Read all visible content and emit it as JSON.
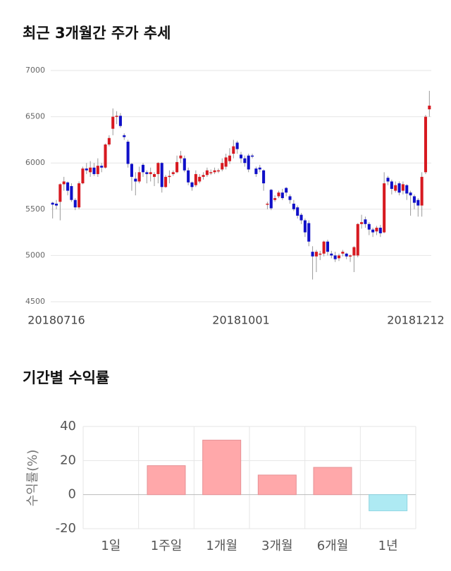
{
  "chart_data": [
    {
      "type": "candlestick",
      "title": "최근 3개월간 주가 추세",
      "categories": [
        "20180716",
        null,
        null,
        null,
        null,
        null,
        null,
        null,
        null,
        null,
        null,
        null,
        null,
        null,
        null,
        null,
        null,
        null,
        null,
        null,
        null,
        null,
        null,
        null,
        null,
        null,
        null,
        null,
        null,
        null,
        null,
        null,
        null,
        null,
        null,
        null,
        null,
        null,
        null,
        null,
        null,
        null,
        null,
        null,
        null,
        null,
        null,
        null,
        null,
        null,
        "20181001",
        null,
        null,
        null,
        null,
        null,
        null,
        null,
        null,
        null,
        null,
        null,
        null,
        null,
        null,
        null,
        null,
        null,
        null,
        null,
        null,
        null,
        null,
        null,
        null,
        null,
        null,
        null,
        null,
        null,
        null,
        null,
        null,
        null,
        null,
        null,
        null,
        null,
        null,
        null,
        null,
        null,
        null,
        null,
        null,
        null,
        null,
        null,
        null,
        null,
        "20181212"
      ],
      "open": [
        5570,
        5560,
        5580,
        5770,
        5790,
        5750,
        5600,
        5520,
        5780,
        5940,
        5900,
        5950,
        5880,
        5970,
        5950,
        6200,
        6370,
        6500,
        6510,
        6300,
        6230,
        5990,
        5830,
        5800,
        5980,
        5900,
        5880,
        5850,
        5880,
        6000,
        5740,
        5850,
        5880,
        5900,
        6050,
        6050,
        5920,
        5790,
        5760,
        5800,
        5850,
        5870,
        5900,
        5900,
        5920,
        5930,
        5960,
        6020,
        6100,
        6220,
        6090,
        6050,
        6080,
        6080,
        5940,
        5950,
        5920,
        5560,
        5710,
        5600,
        5640,
        5680,
        5730,
        5640,
        5560,
        5520,
        5440,
        5380,
        5350,
        5040,
        4990,
        5020,
        5020,
        5150,
        5020,
        5000,
        4970,
        5020,
        5020,
        4990,
        5000,
        5000,
        5340,
        5390,
        5340,
        5280,
        5260,
        5300,
        5250,
        5840,
        5800,
        5700,
        5780,
        5700,
        5760,
        5680,
        5640,
        5600,
        5540,
        5900,
        6580
      ],
      "close": [
        5550,
        5540,
        5770,
        5800,
        5700,
        5600,
        5520,
        5780,
        5940,
        5920,
        5950,
        5880,
        5970,
        5950,
        6200,
        6270,
        6500,
        6510,
        6400,
        6280,
        5990,
        5850,
        5800,
        5900,
        5900,
        5880,
        5900,
        5880,
        6000,
        5740,
        5850,
        5860,
        5900,
        6010,
        6080,
        5920,
        5790,
        5740,
        5880,
        5850,
        5870,
        5920,
        5900,
        5920,
        5920,
        6000,
        6060,
        6080,
        6180,
        6150,
        6050,
        6000,
        5930,
        6070,
        5880,
        5930,
        5780,
        5560,
        5510,
        5620,
        5680,
        5620,
        5680,
        5600,
        5500,
        5430,
        5380,
        5250,
        5150,
        4990,
        5040,
        5020,
        5150,
        5040,
        5000,
        4960,
        5000,
        5040,
        4990,
        5000,
        5090,
        5340,
        5360,
        5340,
        5280,
        5250,
        5300,
        5240,
        5780,
        5800,
        5720,
        5760,
        5680,
        5770,
        5670,
        5650,
        5570,
        5540,
        5850,
        6500,
        6620
      ],
      "high": [
        5580,
        5600,
        5780,
        5850,
        5800,
        5780,
        5620,
        5800,
        5960,
        6000,
        6020,
        6000,
        6050,
        6000,
        6210,
        6300,
        6590,
        6560,
        6540,
        6320,
        6250,
        6000,
        5900,
        5960,
        6000,
        5920,
        5950,
        5900,
        6010,
        6010,
        5870,
        5920,
        5920,
        6080,
        6130,
        6080,
        5950,
        5800,
        5920,
        5880,
        5900,
        5950,
        5930,
        5950,
        5940,
        6050,
        6100,
        6160,
        6250,
        6240,
        6120,
        6080,
        6100,
        6100,
        5960,
        5980,
        5930,
        5580,
        5720,
        5650,
        5700,
        5720,
        5740,
        5660,
        5600,
        5540,
        5460,
        5400,
        5380,
        5100,
        5060,
        5050,
        5160,
        5170,
        5050,
        5040,
        5020,
        5060,
        5030,
        5010,
        5100,
        5350,
        5440,
        5420,
        5360,
        5300,
        5320,
        5330,
        5900,
        5860,
        5820,
        5800,
        5800,
        5800,
        5770,
        5700,
        5660,
        5620,
        5900,
        6520,
        6780
      ],
      "low": [
        5400,
        5500,
        5380,
        5700,
        5650,
        5580,
        5490,
        5500,
        5770,
        5880,
        5850,
        5860,
        5850,
        5900,
        5940,
        6180,
        6300,
        6420,
        6380,
        6250,
        5950,
        5700,
        5650,
        5780,
        5850,
        5780,
        5800,
        5750,
        5780,
        5680,
        5730,
        5780,
        5860,
        5890,
        6000,
        5900,
        5760,
        5700,
        5740,
        5780,
        5820,
        5850,
        5870,
        5880,
        5890,
        5910,
        5930,
        5990,
        6050,
        6100,
        6000,
        5960,
        5900,
        6050,
        5850,
        5900,
        5700,
        5500,
        5490,
        5580,
        5620,
        5600,
        5640,
        5560,
        5480,
        5400,
        5340,
        5200,
        5100,
        4740,
        4820,
        4950,
        4990,
        5000,
        4970,
        4930,
        4940,
        4990,
        4960,
        4930,
        4820,
        4980,
        5290,
        5300,
        5220,
        5200,
        5220,
        5200,
        5240,
        5760,
        5660,
        5680,
        5650,
        5660,
        5600,
        5430,
        5500,
        5420,
        5420,
        5880,
        6500
      ],
      "up_color": "#d71920",
      "down_color": "#1010c8",
      "ylim": [
        4500,
        7000
      ],
      "yticks": [
        4500,
        5000,
        5500,
        6000,
        6500,
        7000
      ],
      "grid": true
    },
    {
      "type": "bar",
      "title": "기간별 수익률",
      "ylabel": "수익률(%)",
      "categories": [
        "1일",
        "1주일",
        "1개월",
        "3개월",
        "6개월",
        "1년"
      ],
      "values": [
        0,
        17,
        32,
        11.5,
        16,
        -9.5
      ],
      "color": "#ffa8aa",
      "negative_color": "#aeeaf3",
      "ylim": [
        -20,
        40
      ],
      "yticks": [
        -20,
        0,
        20,
        40
      ],
      "grid": true
    }
  ]
}
